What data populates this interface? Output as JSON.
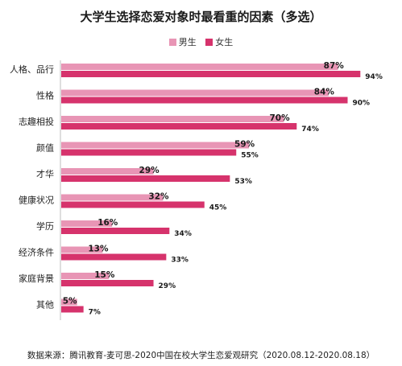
{
  "chart_data": {
    "type": "bar",
    "orientation": "horizontal",
    "title": "大学生选择恋爱对象时最看重的因素（多选）",
    "categories": [
      "人格、品行",
      "性格",
      "志趣相投",
      "颜值",
      "才华",
      "健康状况",
      "学历",
      "经济条件",
      "家庭背景",
      "其他"
    ],
    "series": [
      {
        "name": "男生",
        "color": "#e895b5",
        "values": [
          87,
          84,
          70,
          59,
          29,
          32,
          16,
          13,
          15,
          5
        ],
        "labels": [
          "87%",
          "84%",
          "70%",
          "59%",
          "29%",
          "32%",
          "16%",
          "13%",
          "15%",
          "5%"
        ]
      },
      {
        "name": "女生",
        "color": "#d6336c",
        "values": [
          94,
          90,
          74,
          55,
          53,
          45,
          34,
          33,
          29,
          7
        ],
        "labels": [
          "94%",
          "90%",
          "74%",
          "55%",
          "53%",
          "45%",
          "34%",
          "33%",
          "29%",
          "7%"
        ]
      }
    ],
    "xlim": [
      0,
      100
    ],
    "grid": false,
    "legend_position": "top"
  },
  "source_note": "数据来源：腾讯教育-麦可思-2020中国在校大学生恋爱观研究（2020.08.12-2020.08.18）"
}
